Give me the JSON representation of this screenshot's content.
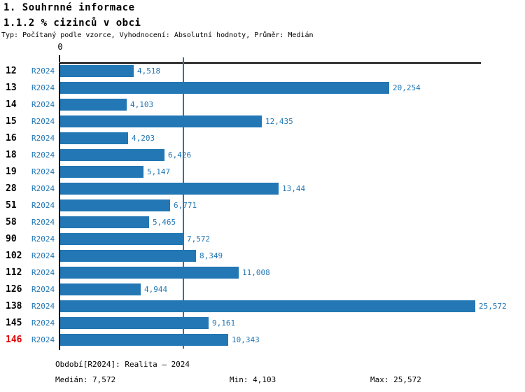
{
  "header": {
    "title": "1. Souhrnné informace",
    "subtitle": "1.1.2 % cizinců v obci",
    "meta": "Typ: Počítaný podle vzorce, Vyhodnocení: Absolutní hodnoty, Průměr: Medián"
  },
  "chart_data": {
    "type": "bar",
    "orientation": "horizontal",
    "title": "1.1.2 % cizinců v obci",
    "xlabel": "",
    "ylabel": "",
    "axis_zero_label": "0",
    "xlim": [
      0,
      25.572
    ],
    "grid": false,
    "legend": false,
    "series_label": "R2024",
    "categories": [
      "12",
      "13",
      "14",
      "15",
      "16",
      "18",
      "19",
      "28",
      "51",
      "58",
      "90",
      "102",
      "112",
      "126",
      "138",
      "145",
      "146"
    ],
    "values": [
      4.518,
      20.254,
      4.103,
      12.435,
      4.203,
      6.426,
      5.147,
      13.44,
      6.771,
      5.465,
      7.572,
      8.349,
      11.008,
      4.944,
      25.572,
      9.161,
      10.343
    ],
    "value_labels": [
      "4,518",
      "20,254",
      "4,103",
      "12,435",
      "4,203",
      "6,426",
      "5,147",
      "13,44",
      "6,771",
      "5,465",
      "7,572",
      "8,349",
      "11,008",
      "4,944",
      "25,572",
      "9,161",
      "10,343"
    ],
    "median": 7.572,
    "min": 4.103,
    "max": 25.572,
    "highlight_category": "146",
    "colors": {
      "bar": "#2277b4",
      "label_blue": "#2277b4",
      "axis_black": "#000000",
      "highlight_red": "#e00000"
    }
  },
  "footer": {
    "period": "Období[R2024]: Realita – 2024",
    "median": "Medián: 7,572",
    "min": "Min: 4,103",
    "max": "Max: 25,572"
  }
}
